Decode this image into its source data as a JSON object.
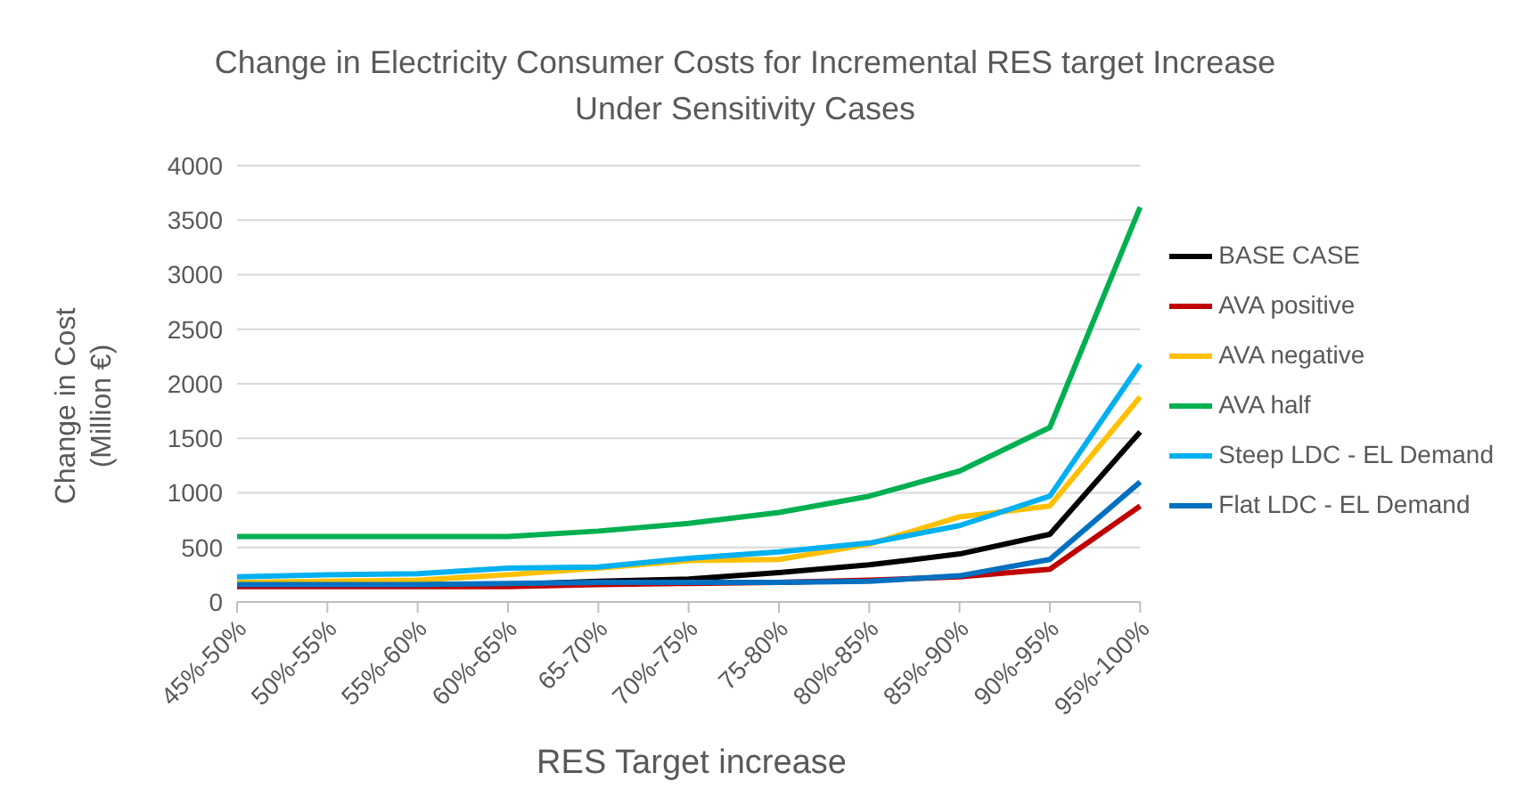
{
  "chart_data": {
    "type": "line",
    "title": "Change in Electricity Consumer Costs for Incremental RES target Increase\nUnder Sensitivity Cases",
    "xlabel": "RES Target increase",
    "ylabel": "Change in Cost\n(Million €)",
    "categories": [
      "45%-50%",
      "50%-55%",
      "55%-60%",
      "60%-65%",
      "65-70%",
      "70%-75%",
      "75-80%",
      "80%-85%",
      "85%-90%",
      "90%-95%",
      "95%-100%"
    ],
    "series": [
      {
        "name": "BASE CASE",
        "color": "#000000",
        "values": [
          150,
          160,
          160,
          160,
          190,
          210,
          270,
          340,
          440,
          620,
          1560
        ]
      },
      {
        "name": "AVA positive",
        "color": "#c00000",
        "values": [
          140,
          140,
          140,
          140,
          160,
          170,
          180,
          200,
          230,
          300,
          880
        ]
      },
      {
        "name": "AVA negative",
        "color": "#ffc000",
        "values": [
          180,
          190,
          200,
          250,
          310,
          380,
          390,
          530,
          780,
          880,
          1880
        ]
      },
      {
        "name": "AVA half",
        "color": "#00b050",
        "values": [
          600,
          600,
          600,
          600,
          650,
          720,
          820,
          970,
          1200,
          1600,
          3620
        ]
      },
      {
        "name": "Steep LDC - EL Demand",
        "color": "#00b0f0",
        "values": [
          230,
          250,
          260,
          310,
          320,
          400,
          460,
          540,
          700,
          970,
          2180
        ]
      },
      {
        "name": "Flat LDC - EL Demand",
        "color": "#0070c0",
        "values": [
          160,
          160,
          160,
          170,
          180,
          180,
          180,
          190,
          240,
          390,
          1100
        ]
      }
    ],
    "ylim": [
      0,
      4000
    ],
    "yticks": [
      0,
      500,
      1000,
      1500,
      2000,
      2500,
      3000,
      3500,
      4000
    ],
    "grid": "y",
    "legend": "right",
    "marker": "none",
    "line_style": "solid"
  }
}
